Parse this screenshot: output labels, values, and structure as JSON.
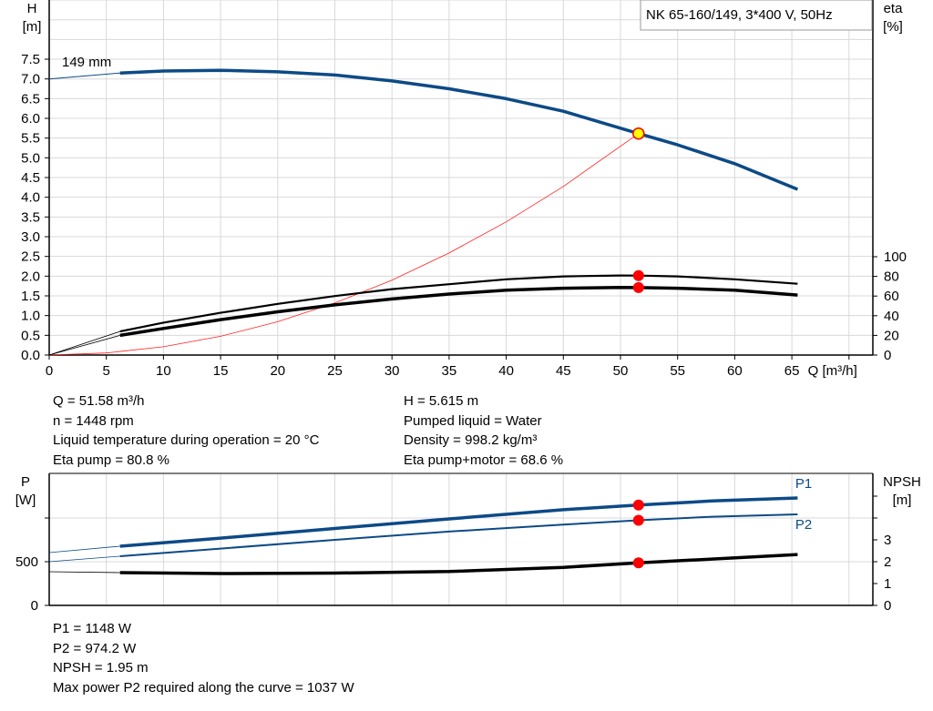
{
  "title_box": "NK 65-160/149, 3*400 V, 50Hz",
  "colors": {
    "head": "#0d4a86",
    "eta": "#000000",
    "system": "#ff2020",
    "marker": "#ff0000",
    "duty_point_fill": "#ffff00",
    "grid": "#d8d8d8"
  },
  "chart_data": [
    {
      "type": "line",
      "xlabel": "Q [m³/h]",
      "ylabel": "H\n[m]",
      "y2label": "eta\n[%]",
      "xlim": [
        0,
        70
      ],
      "ylim": [
        0,
        9
      ],
      "y2lim": [
        0,
        100
      ],
      "grid": true,
      "x_ticks": [
        "0",
        "5",
        "10",
        "15",
        "20",
        "25",
        "30",
        "35",
        "40",
        "45",
        "50",
        "55",
        "60",
        "65"
      ],
      "y_ticks": [
        "0.0",
        "0.5",
        "1.0",
        "1.5",
        "2.0",
        "2.5",
        "3.0",
        "3.5",
        "4.0",
        "4.5",
        "5.0",
        "5.5",
        "6.0",
        "6.5",
        "7.0",
        "7.5"
      ],
      "y2_ticks": [
        "0",
        "20",
        "40",
        "60",
        "80",
        "100"
      ],
      "curve_label": "149 mm",
      "series": [
        {
          "key": "head",
          "axis": "H",
          "x": [
            0,
            6.2,
            10,
            15,
            20,
            25,
            30,
            35,
            40,
            45,
            51.58,
            55,
            60,
            65.5
          ],
          "y": [
            7.0,
            7.15,
            7.2,
            7.22,
            7.18,
            7.1,
            6.95,
            6.75,
            6.5,
            6.18,
            5.615,
            5.33,
            4.85,
            4.2
          ]
        },
        {
          "key": "system",
          "axis": "H",
          "x": [
            0,
            5,
            10,
            15,
            20,
            25,
            30,
            35,
            40,
            45,
            51.58
          ],
          "y": [
            0,
            0.053,
            0.211,
            0.475,
            0.844,
            1.319,
            1.9,
            2.586,
            3.377,
            4.274,
            5.615
          ]
        },
        {
          "key": "eta_pump",
          "axis": "eta",
          "x": [
            0,
            6.2,
            10,
            15,
            20,
            25,
            30,
            35,
            40,
            45,
            50,
            51.58,
            55,
            60,
            65.5
          ],
          "y": [
            0,
            24,
            33,
            43,
            52,
            60,
            67,
            72,
            77,
            80,
            80.9,
            80.8,
            80,
            77,
            72.5
          ]
        },
        {
          "key": "eta_pump_motor",
          "axis": "eta",
          "x": [
            0,
            6.2,
            10,
            15,
            20,
            25,
            30,
            35,
            40,
            45,
            50,
            51.58,
            55,
            60,
            65.5
          ],
          "y": [
            0,
            20,
            27,
            36,
            44,
            51,
            57,
            62,
            66,
            68,
            68.8,
            68.6,
            68,
            66,
            61
          ]
        }
      ],
      "duty_point": {
        "Q": 51.58,
        "H": 5.615,
        "eta_pump": 80.8,
        "eta_pump_motor": 68.6
      }
    },
    {
      "type": "line",
      "ylabel": "P\n[W]",
      "y2label": "NPSH\n[m]",
      "xlim": [
        0,
        70
      ],
      "ylim": [
        0,
        1500
      ],
      "y2lim": [
        0,
        6
      ],
      "grid": true,
      "y_ticks": [
        "0",
        "500"
      ],
      "y2_ticks": [
        "0",
        "1",
        "2",
        "3"
      ],
      "series": [
        {
          "key": "P1",
          "name": "P1",
          "axis": "P",
          "x": [
            0,
            6.2,
            15,
            25,
            35,
            45,
            51.58,
            58,
            65.5
          ],
          "y": [
            604,
            677,
            770,
            880,
            990,
            1095,
            1148,
            1195,
            1229
          ]
        },
        {
          "key": "P2",
          "name": "P2",
          "axis": "P",
          "x": [
            0,
            6.2,
            15,
            25,
            35,
            45,
            51.58,
            58,
            65.5
          ],
          "y": [
            500,
            562,
            650,
            750,
            845,
            925,
            974.2,
            1015,
            1042
          ]
        },
        {
          "key": "NPSH",
          "axis": "NPSH",
          "x": [
            0,
            6.2,
            15,
            25,
            35,
            45,
            51.58,
            58,
            65.5
          ],
          "y": [
            1.54,
            1.5,
            1.46,
            1.48,
            1.55,
            1.74,
            1.95,
            2.12,
            2.33
          ]
        }
      ],
      "duty_point": {
        "Q": 51.58,
        "P1": 1148,
        "P2": 974.2,
        "NPSH": 1.95
      }
    }
  ],
  "info_left": [
    "Q = 51.58 m³/h",
    "n = 1448 rpm",
    "Liquid temperature during operation = 20 °C",
    "Eta pump = 80.8 %"
  ],
  "info_right": [
    "H = 5.615 m",
    "Pumped liquid = Water",
    "Density = 998.2 kg/m³",
    "Eta pump+motor = 68.6 %"
  ],
  "info_bottom": [
    "P1 = 1148 W",
    "P2 = 974.2 W",
    "NPSH = 1.95 m",
    "Max power P2 required along the curve = 1037 W"
  ]
}
